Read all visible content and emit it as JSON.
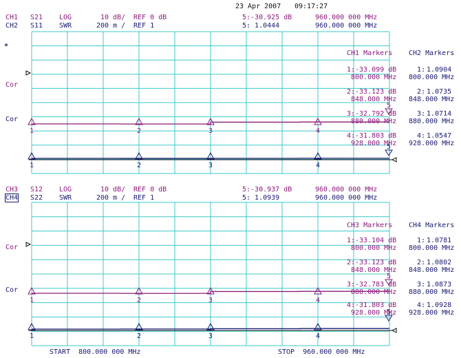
{
  "header": {
    "date": "23 Apr 2007",
    "time": "09:17:27"
  },
  "panels": [
    {
      "id": "top",
      "line_a": {
        "ch": "CH1",
        "param": "S21",
        "format": "LOG",
        "scale": "10 dB/",
        "ref": "REF 0 dB",
        "marker_readout": "5:-30.925 dB",
        "marker_freq": "960.000 000 MHz"
      },
      "line_b": {
        "ch": "CH2",
        "param": "S11",
        "format": "SWR",
        "scale": "200 m /",
        "ref": "REF 1",
        "marker_readout": "5: 1.0444",
        "marker_freq": "960.000 000 MHz"
      },
      "active_mark": "*",
      "cor_a": "Cor",
      "cor_b": "Cor",
      "ch_a_markers_title": "CH1 Markers",
      "ch_b_markers_title": "CH2 Markers",
      "ch_a_markers": [
        {
          "label": "1:",
          "value": "-33.099 dB",
          "freq": "800.000 MHz"
        },
        {
          "label": "2:",
          "value": "-33.123 dB",
          "freq": "848.000 MHz"
        },
        {
          "label": "3:",
          "value": "-32.792 dB",
          "freq": "880.000 MHz"
        },
        {
          "label": "4:",
          "value": "-31.803 dB",
          "freq": "928.000 MHz"
        }
      ],
      "ch_b_markers": [
        {
          "label": "1:",
          "value": "1.0904",
          "freq": "800.000 MHz"
        },
        {
          "label": "2:",
          "value": "1.0735",
          "freq": "848.000 MHz"
        },
        {
          "label": "3:",
          "value": "1.0714",
          "freq": "880.000 MHz"
        },
        {
          "label": "4:",
          "value": "1.0547",
          "freq": "928.000 MHz"
        }
      ],
      "trace_a_levels": [
        0.0,
        -0.02,
        0.32,
        0.35
      ],
      "trace_b_levels": [
        0.0,
        -0.01,
        0.0,
        0.02
      ]
    },
    {
      "id": "bottom",
      "line_a": {
        "ch": "CH3",
        "param": "S12",
        "format": "LOG",
        "scale": "10 dB/",
        "ref": "REF 0 dB",
        "marker_readout": "5:-30.937 dB",
        "marker_freq": "960.000 000 MHz"
      },
      "line_b": {
        "ch": "CH4",
        "param": "S22",
        "format": "SWR",
        "scale": "200 m /",
        "ref": "REF 1",
        "marker_readout": "5: 1.0939",
        "marker_freq": "960.000 000 MHz"
      },
      "active_mark": "",
      "cor_a": "Cor",
      "cor_b": "Cor",
      "ch_a_markers_title": "CH3 Markers",
      "ch_b_markers_title": "CH4 Markers",
      "ch_a_markers": [
        {
          "label": "1:",
          "value": "-33.104 dB",
          "freq": "800.000 MHz"
        },
        {
          "label": "2:",
          "value": "-33.123 dB",
          "freq": "848.000 MHz"
        },
        {
          "label": "3:",
          "value": "-32.783 dB",
          "freq": "880.000 MHz"
        },
        {
          "label": "4:",
          "value": "-31.803 dB",
          "freq": "928.000 MHz"
        }
      ],
      "ch_b_markers": [
        {
          "label": "1:",
          "value": "1.0781",
          "freq": "800.000 MHz"
        },
        {
          "label": "2:",
          "value": "1.0802",
          "freq": "848.000 MHz"
        },
        {
          "label": "3:",
          "value": "1.0873",
          "freq": "880.000 MHz"
        },
        {
          "label": "4:",
          "value": "1.0928",
          "freq": "928.000 MHz"
        }
      ],
      "trace_a_levels": [
        0.0,
        -0.02,
        0.32,
        0.35
      ],
      "trace_b_levels": [
        0.0,
        0.02,
        0.07,
        0.1
      ]
    }
  ],
  "footer": {
    "start": "START  800.000 000 MHz",
    "stop": "STOP  960.000 000 MHz"
  },
  "marker_numbers": [
    "1",
    "2",
    "3",
    "4",
    "5"
  ],
  "colors": {
    "grid": "#3cc8c8",
    "trace_a": "#8b1a7a",
    "trace_b": "#1a1a70",
    "text_a": "#8b1a7a",
    "text_b": "#1a1a70",
    "ref_marker": "#111111"
  }
}
